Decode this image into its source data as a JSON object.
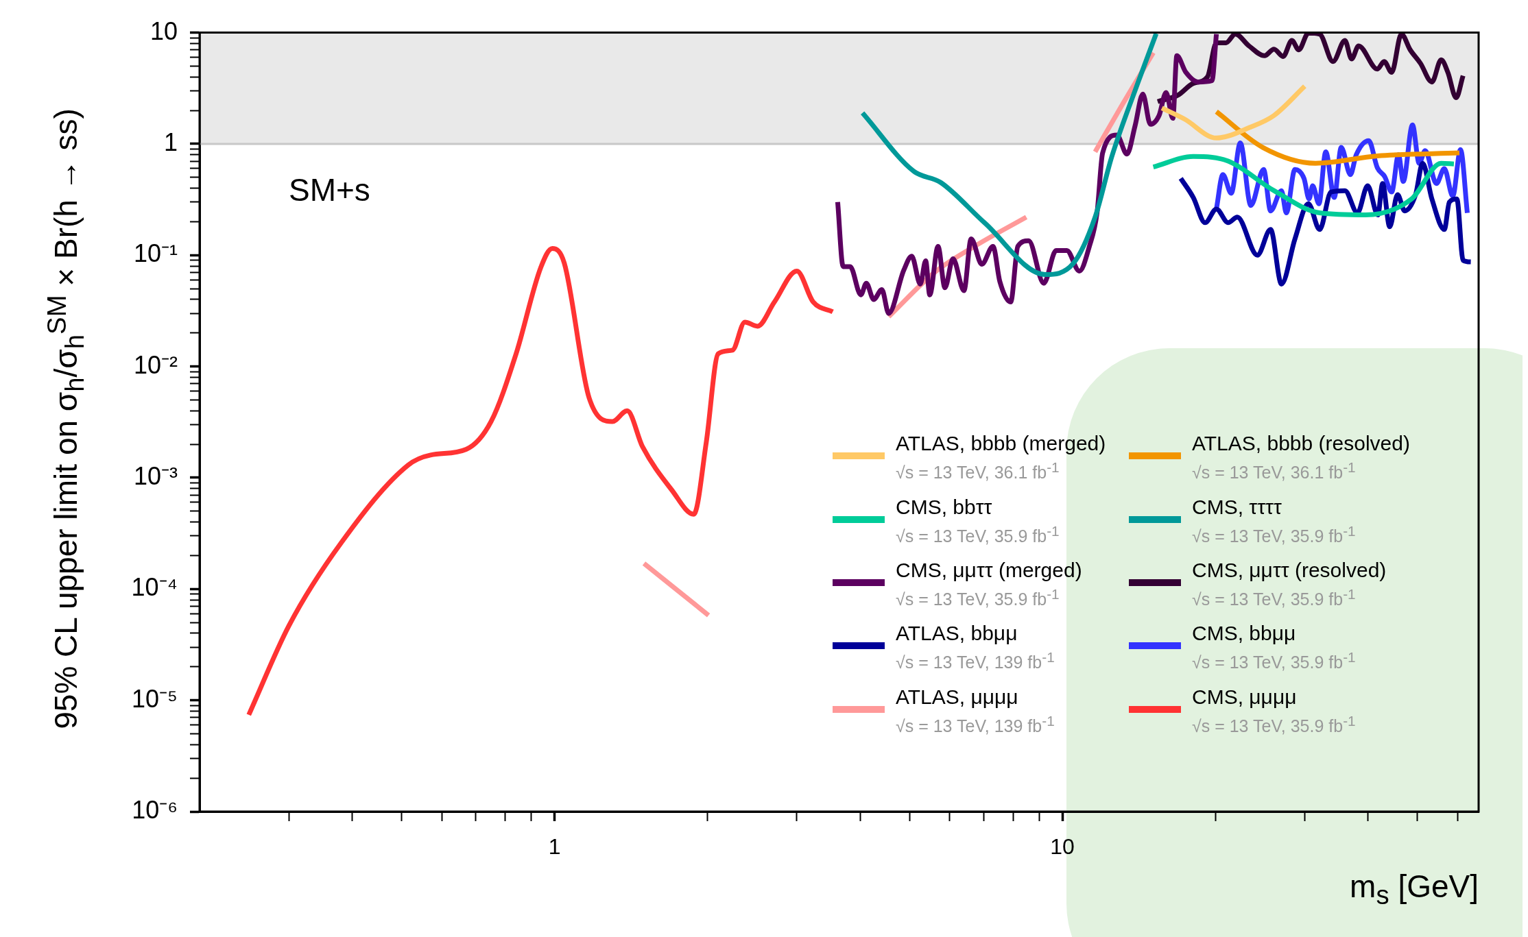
{
  "chart_data": {
    "type": "line",
    "xlabel": "m$_{s}$ [GeV]",
    "ylabel": "95% CL upper limit on σ$_{h}$/σ$_{h}$$^{SM}$ × Br(h → ss)",
    "annotations": [
      "SM+s"
    ],
    "log": "xy",
    "legend": "bottom right",
    "marker": "none",
    "xlim": [
      0.2,
      66
    ],
    "xticks": [
      {
        "value": 0.3,
        "label": null
      },
      {
        "value": 0.4,
        "label": null
      },
      {
        "value": 0.5,
        "label": null
      },
      {
        "value": 0.6,
        "label": null
      },
      {
        "value": 0.7,
        "label": null
      },
      {
        "value": 0.8,
        "label": null
      },
      {
        "value": 0.9,
        "label": null
      },
      1,
      {
        "value": 2,
        "label": null
      },
      {
        "value": 3,
        "label": null
      },
      {
        "value": 4,
        "label": null
      },
      {
        "value": 5,
        "label": null
      },
      {
        "value": 6,
        "label": null
      },
      {
        "value": 7,
        "label": null
      },
      {
        "value": 8,
        "label": null
      },
      {
        "value": 9,
        "label": null
      },
      10,
      {
        "value": 20,
        "label": null
      },
      {
        "value": 30,
        "label": null
      },
      {
        "value": 40,
        "label": null
      },
      {
        "value": 50,
        "label": null
      },
      {
        "value": 60,
        "label": null
      }
    ],
    "ylim": [
      1e-06,
      10
    ],
    "yticks": [
      {
        "value": 1e-06,
        "label": "10⁻⁶"
      },
      {
        "value": 2e-06,
        "label": null
      },
      {
        "value": 3e-06,
        "label": null
      },
      {
        "value": 4e-06,
        "label": null
      },
      {
        "value": 5e-06,
        "label": null
      },
      {
        "value": 6e-06,
        "label": null
      },
      {
        "value": 7e-06,
        "label": null
      },
      {
        "value": 8e-06,
        "label": null
      },
      {
        "value": 9e-06,
        "label": null
      },
      {
        "value": 1e-05,
        "label": "10⁻⁵"
      },
      {
        "value": 2e-05,
        "label": null
      },
      {
        "value": 3e-05,
        "label": null
      },
      {
        "value": 4e-05,
        "label": null
      },
      {
        "value": 5e-05,
        "label": null
      },
      {
        "value": 6e-05,
        "label": null
      },
      {
        "value": 7e-05,
        "label": null
      },
      {
        "value": 8e-05,
        "label": null
      },
      {
        "value": 9e-05,
        "label": null
      },
      {
        "value": 0.0001,
        "label": "10⁻⁴"
      },
      {
        "value": 0.0002,
        "label": null
      },
      {
        "value": 0.0003,
        "label": null
      },
      {
        "value": 0.0004,
        "label": null
      },
      {
        "value": 0.0005,
        "label": null
      },
      {
        "value": 0.0006,
        "label": null
      },
      {
        "value": 0.0007,
        "label": null
      },
      {
        "value": 0.0008,
        "label": null
      },
      {
        "value": 0.0009,
        "label": null
      },
      {
        "value": 0.001,
        "label": "10⁻³"
      },
      {
        "value": 0.002,
        "label": null
      },
      {
        "value": 0.003,
        "label": null
      },
      {
        "value": 0.004,
        "label": null
      },
      {
        "value": 0.005,
        "label": null
      },
      {
        "value": 0.006,
        "label": null
      },
      {
        "value": 0.007,
        "label": null
      },
      {
        "value": 0.008,
        "label": null
      },
      {
        "value": 0.009,
        "label": null
      },
      {
        "value": 0.01,
        "label": "10⁻²"
      },
      {
        "value": 0.02,
        "label": null
      },
      {
        "value": 0.03,
        "label": null
      },
      {
        "value": 0.04,
        "label": null
      },
      {
        "value": 0.05,
        "label": null
      },
      {
        "value": 0.06,
        "label": null
      },
      {
        "value": 0.07,
        "label": null
      },
      {
        "value": 0.08,
        "label": null
      },
      {
        "value": 0.09,
        "label": null
      },
      {
        "value": 0.1,
        "label": "10⁻¹"
      },
      {
        "value": 0.2,
        "label": null
      },
      {
        "value": 0.3,
        "label": null
      },
      {
        "value": 0.4,
        "label": null
      },
      {
        "value": 0.5,
        "label": null
      },
      {
        "value": 0.6,
        "label": null
      },
      {
        "value": 0.7,
        "label": null
      },
      {
        "value": 0.8,
        "label": null
      },
      {
        "value": 0.9,
        "label": null
      },
      1,
      {
        "value": 2,
        "label": null
      },
      {
        "value": 3,
        "label": null
      },
      {
        "value": 4,
        "label": null
      },
      {
        "value": 5,
        "label": null
      },
      {
        "value": 6,
        "label": null
      },
      {
        "value": 7,
        "label": null
      },
      {
        "value": 8,
        "label": null
      },
      {
        "value": 9,
        "label": null
      },
      10
    ],
    "bands": [
      {
        "axis": "y",
        "from": 1,
        "to": 10,
        "color": "#c8c8c8"
      }
    ],
    "series": [
      {
        "name": "ATLAS, bbbb (merged)\n√s = 13 TeV, 36.1 fb$^{-1}$",
        "color": "#ffc966",
        "x": [
          15.7,
          17.4,
          20.1,
          23.5,
          26.1,
          30.0
        ],
        "values": [
          2.1,
          1.67,
          1.13,
          1.42,
          1.8,
          3.3
        ]
      },
      {
        "name": "ATLAS, bbbb (resolved)\n√s = 13 TeV, 36.1 fb$^{-1}$",
        "color": "#f29500",
        "x": [
          20.1,
          24.8,
          31.5,
          41.7,
          60.5
        ],
        "values": [
          1.95,
          0.93,
          0.67,
          0.78,
          0.83
        ]
      },
      {
        "name": "CMS, bbττ\n√s = 13 TeV, 35.9 fb$^{-1}$",
        "color": "#00cc99",
        "x": [
          15.1,
          18.1,
          21.2,
          26.1,
          32.1,
          39.5,
          48.7,
          55.7,
          59
        ],
        "values": [
          0.62,
          0.77,
          0.7,
          0.38,
          0.24,
          0.23,
          0.32,
          0.67,
          0.66
        ]
      },
      {
        "name": "CMS, ττττ\n√s = 13 TeV, 35.9 fb$^{-1}$",
        "color": "#009999",
        "x": [
          4.04,
          5.09,
          5.76,
          7.03,
          9.25,
          10.5,
          11.6,
          12.5,
          14.1,
          15.3
        ],
        "values": [
          1.9,
          0.57,
          0.45,
          0.195,
          0.067,
          0.084,
          0.22,
          0.76,
          3.6,
          9.8
        ]
      },
      {
        "name": "CMS, μμττ (merged)\n√s = 13 TeV, 35.9 fb$^{-1}$",
        "color": "#5c0060",
        "x": [
          3.61,
          3.7,
          3.82,
          4.01,
          4.11,
          4.25,
          4.41,
          4.55,
          4.87,
          5.05,
          5.25,
          5.38,
          5.48,
          5.69,
          5.87,
          6.09,
          6.4,
          6.61,
          6.94,
          7.3,
          7.53,
          7.91,
          8.17,
          8.58,
          9.19,
          9.72,
          10.2,
          10.8,
          11.3,
          11.7,
          12.0,
          12.8,
          13.4,
          13.9,
          14.4,
          14.9,
          15.5,
          16.0,
          16.5,
          16.8,
          17.5,
          18.5,
          19.7,
          20.1
        ],
        "values": [
          0.3,
          0.079,
          0.079,
          0.044,
          0.056,
          0.04,
          0.049,
          0.03,
          0.073,
          0.098,
          0.055,
          0.089,
          0.044,
          0.12,
          0.051,
          0.093,
          0.048,
          0.14,
          0.083,
          0.12,
          0.058,
          0.038,
          0.12,
          0.135,
          0.056,
          0.11,
          0.11,
          0.072,
          0.12,
          0.24,
          0.83,
          1.2,
          0.81,
          1.45,
          2.8,
          1.5,
          1.8,
          2.9,
          1.7,
          6.2,
          4.4,
          3.6,
          3.7,
          9.7
        ]
      },
      {
        "name": "CMS, μμττ (resolved)\n√s = 13 TeV, 35.9 fb$^{-1}$",
        "color": "#330033",
        "x": [
          15.4,
          16.9,
          18.1,
          19.3,
          20.1,
          21.0,
          21.9,
          23.3,
          25.0,
          26.1,
          27.2,
          28.3,
          29.2,
          30.5,
          32.1,
          34.1,
          36.0,
          37.1,
          38.3,
          41.7,
          43.0,
          44.5,
          46.5,
          48.4,
          50.7,
          53.4,
          55.7,
          57.4,
          59.6,
          61.5
        ],
        "values": [
          2.4,
          2.75,
          3.5,
          4.0,
          8.1,
          8.1,
          9.7,
          7.6,
          6.2,
          7.1,
          6.1,
          8.5,
          7.0,
          9.9,
          9.7,
          5.5,
          8.5,
          5.8,
          7.6,
          4.7,
          5.5,
          4.4,
          9.7,
          7.0,
          5.3,
          3.6,
          5.7,
          4.4,
          2.6,
          4.1
        ]
      },
      {
        "name": "ATLAS, bbμμ\n√s = 13 TeV, 139 fb$^{-1}$",
        "color": "#000099",
        "x": [
          17.1,
          18.1,
          19.1,
          20.1,
          21.2,
          22.1,
          24.2,
          25.7,
          27.0,
          28.7,
          30.5,
          32.1,
          33.8,
          36.0,
          38.1,
          39.9,
          41.8,
          42.7,
          44.1,
          45.7,
          47.2,
          49.6,
          51.2,
          53.4,
          56.5,
          57.8,
          59.8,
          61.5,
          63.7
        ],
        "values": [
          0.49,
          0.33,
          0.196,
          0.26,
          0.196,
          0.22,
          0.1,
          0.17,
          0.055,
          0.14,
          0.29,
          0.17,
          0.37,
          0.38,
          0.24,
          0.42,
          0.23,
          0.44,
          0.18,
          0.35,
          0.25,
          0.35,
          0.67,
          0.32,
          0.17,
          0.3,
          0.32,
          0.09,
          0.087
        ]
      },
      {
        "name": "CMS, bbμμ\n√s = 13 TeV, 35.9 fb$^{-1}$",
        "color": "#3333ff",
        "x": [
          20.1,
          20.7,
          21.5,
          22.4,
          23.5,
          24.9,
          25.7,
          27.0,
          27.6,
          28.7,
          29.9,
          30.6,
          31.1,
          32.0,
          33.0,
          34.3,
          35.4,
          36.9,
          37.9,
          40.1,
          41.7,
          43.1,
          44.5,
          45.9,
          46.9,
          48.9,
          50.4,
          51.8,
          54.5,
          56.5,
          58.7,
          60.8,
          62.7
        ],
        "values": [
          0.26,
          0.53,
          0.36,
          1.02,
          0.28,
          0.59,
          0.25,
          0.38,
          0.24,
          0.59,
          0.49,
          0.32,
          0.42,
          0.29,
          0.85,
          0.33,
          0.93,
          0.53,
          0.8,
          1.07,
          0.61,
          0.51,
          0.37,
          0.8,
          0.46,
          1.48,
          0.67,
          0.87,
          0.44,
          0.6,
          0.34,
          0.89,
          0.24
        ]
      },
      {
        "name": "ATLAS, μμμμ\n√s = 13 TeV, 139 fb$^{-1}$",
        "color": "#ff9999",
        "x": [
          1.5,
          2.01,
          3,
          4.55,
          5.62,
          6.71,
          8.49,
          10,
          11.6,
          13.0,
          15.1
        ],
        "values": [
          0.00017,
          5.8e-05,
          null,
          0.028,
          0.071,
          0.12,
          0.22,
          null,
          0.85,
          2.1,
          6.6
        ]
      },
      {
        "name": "CMS, μμμμ\n√s = 13 TeV, 35.9 fb$^{-1}$",
        "color": "#ff3333",
        "x": [
          0.25,
          0.3,
          0.38,
          0.515,
          0.57,
          0.67,
          0.75,
          0.84,
          0.94,
          0.99,
          1.045,
          1.17,
          1.3,
          1.39,
          1.49,
          1.7,
          1.88,
          1.99,
          2.1,
          2.24,
          2.37,
          2.51,
          2.71,
          3.0,
          3.23,
          3.53
        ],
        "values": [
          7.4e-06,
          4.7e-05,
          0.00026,
          0.0013,
          0.0016,
          0.0018,
          0.0032,
          0.013,
          0.078,
          0.115,
          0.085,
          0.0052,
          0.0032,
          0.004,
          0.0019,
          0.00078,
          0.00047,
          0.0021,
          0.013,
          0.014,
          0.025,
          0.023,
          0.038,
          0.072,
          0.038,
          0.031
        ]
      }
    ]
  }
}
